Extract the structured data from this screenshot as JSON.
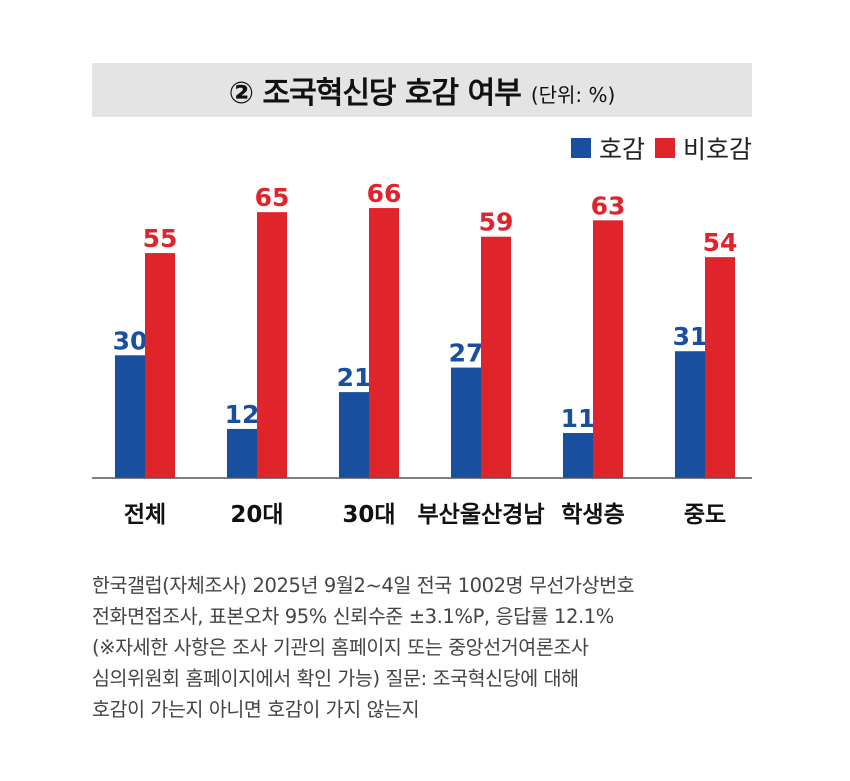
{
  "title": {
    "main": "② 조국혁신당 호감 여부",
    "unit": "(단위: %)"
  },
  "legend": [
    {
      "label": "호감",
      "color": "#1a4fa0"
    },
    {
      "label": "비호감",
      "color": "#e0242b"
    }
  ],
  "chart_data": {
    "type": "bar",
    "title": "② 조국혁신당 호감 여부",
    "unit": "(단위: %)",
    "categories": [
      "전체",
      "20대",
      "30대",
      "부산울산경남",
      "학생층",
      "중도"
    ],
    "series": [
      {
        "name": "호감",
        "color": "#1a4fa0",
        "values": [
          30,
          12,
          21,
          27,
          11,
          31
        ]
      },
      {
        "name": "비호감",
        "color": "#e0242b",
        "values": [
          55,
          65,
          66,
          59,
          63,
          54
        ]
      }
    ],
    "ylim": [
      0,
      75
    ],
    "grid": false
  },
  "source_lines": [
    "한국갤럽(자체조사) 2025년 9월2~4일 전국 1002명 무선가상번호",
    "전화면접조사, 표본오차 95% 신뢰수준 ±3.1%P, 응답률 12.1%",
    "(※자세한 사항은 조사 기관의 홈페이지 또는 중앙선거여론조사",
    "심의위원회 홈페이지에서 확인 가능) 질문: 조국혁신당에 대해",
    "호감이 가는지 아니면 호감이 가지 않는지"
  ]
}
